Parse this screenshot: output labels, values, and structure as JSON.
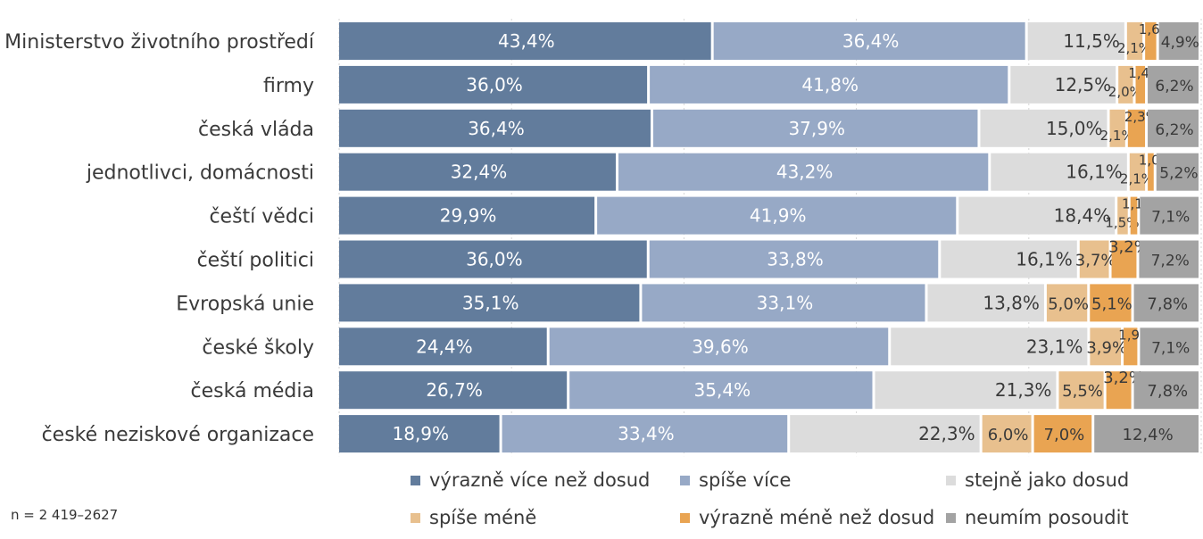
{
  "chart_data": {
    "type": "bar",
    "orientation": "horizontal",
    "stacked": true,
    "normalized": true,
    "categories": [
      "Ministerstvo životního prostředí",
      "firmy",
      "česká vláda",
      "jednotlivci, domácnosti",
      "čeští vědci",
      "čeští politici",
      "Evropská unie",
      "české školy",
      "česká média",
      "české neziskové organizace"
    ],
    "series": [
      {
        "name": "výrazně více než dosud",
        "color": "#627c9c",
        "values": [
          43.4,
          36.0,
          36.4,
          32.4,
          29.9,
          36.0,
          35.1,
          24.4,
          26.7,
          18.9
        ],
        "labels": [
          "43,4%",
          "36,0%",
          "36,4%",
          "32,4%",
          "29,9%",
          "36,0%",
          "35,1%",
          "24,4%",
          "26,7%",
          "18,9%"
        ]
      },
      {
        "name": "spíše více",
        "color": "#97a9c6",
        "values": [
          36.4,
          41.8,
          37.9,
          43.2,
          41.9,
          33.8,
          33.1,
          39.6,
          35.4,
          33.4
        ],
        "labels": [
          "36,4%",
          "41,8%",
          "37,9%",
          "43,2%",
          "41,9%",
          "33,8%",
          "33,1%",
          "39,6%",
          "35,4%",
          "33,4%"
        ]
      },
      {
        "name": "stejně jako dosud",
        "color": "#dcdcdc",
        "values": [
          11.5,
          12.5,
          15.0,
          16.1,
          18.4,
          16.1,
          13.8,
          23.1,
          21.3,
          22.3
        ],
        "labels": [
          "11,5%",
          "12,5%",
          "15,0%",
          "16,1%",
          "18,4%",
          "16,1%",
          "13,8%",
          "23,1%",
          "21,3%",
          "22,3%"
        ]
      },
      {
        "name": "spíše méně",
        "color": "#e8c08e",
        "values": [
          2.1,
          2.0,
          2.1,
          2.1,
          1.5,
          3.7,
          5.0,
          3.9,
          5.5,
          6.0
        ],
        "labels": [
          "2,1%",
          "2,0%",
          "2,1%",
          "2,1%",
          "1,5%",
          "3,7%",
          "5,0%",
          "3,9%",
          "5,5%",
          "6,0%"
        ]
      },
      {
        "name": "výrazně méně než dosud",
        "color": "#e9a452",
        "values": [
          1.6,
          1.4,
          2.3,
          1.0,
          1.1,
          3.2,
          5.1,
          1.9,
          3.2,
          7.0
        ],
        "labels": [
          "1,6%",
          "1,4%",
          "2,3%",
          "1,0%",
          "1,1%",
          "3,2%",
          "5,1%",
          "1,9%",
          "3,2%",
          "7,0%"
        ]
      },
      {
        "name": "neumím posoudit",
        "color": "#a3a3a3",
        "values": [
          4.9,
          6.2,
          6.2,
          5.2,
          7.1,
          7.2,
          7.8,
          7.1,
          7.8,
          12.4
        ],
        "labels": [
          "4,9%",
          "6,2%",
          "6,2%",
          "5,2%",
          "7,1%",
          "7,2%",
          "7,8%",
          "7,1%",
          "7,8%",
          "12,4%"
        ]
      }
    ],
    "title": "",
    "xlabel": "",
    "ylabel": "",
    "xlim": [
      0,
      100
    ],
    "grid": true,
    "legend_position": "bottom"
  },
  "note": "n = 2 419–2627"
}
